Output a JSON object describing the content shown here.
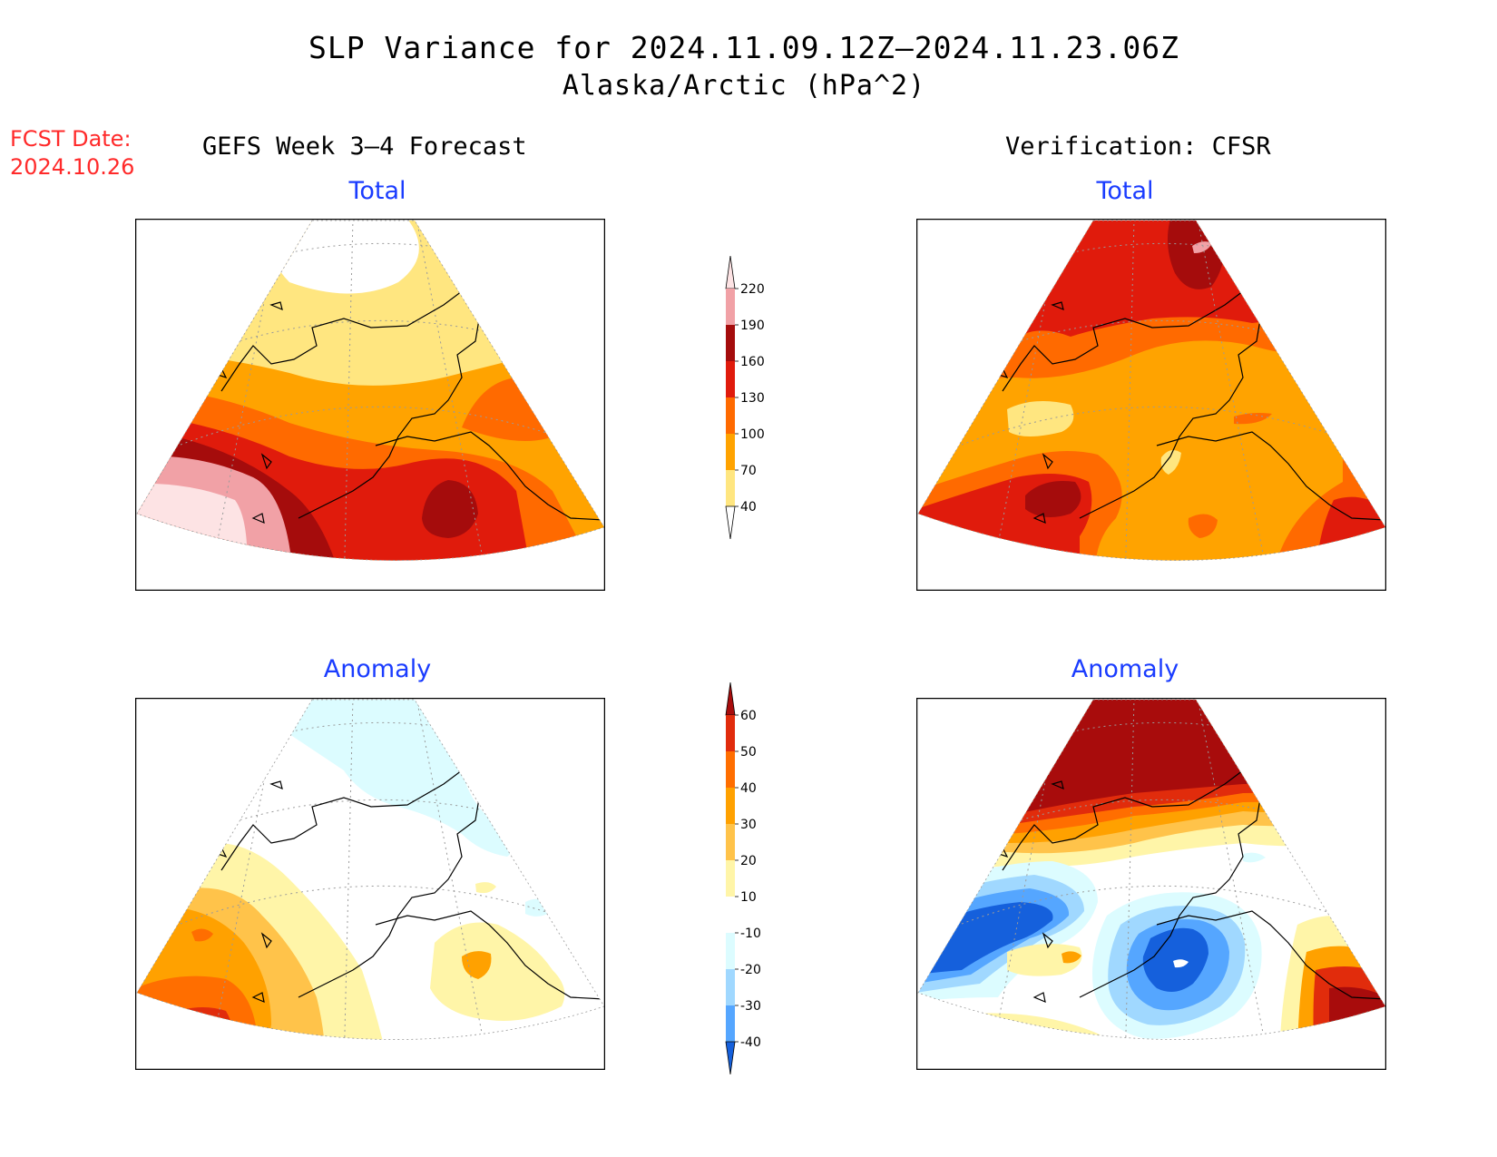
{
  "title": {
    "line1": "SLP Variance for 2024.11.09.12Z–2024.11.23.06Z",
    "line2": "Alaska/Arctic (hPa^2)"
  },
  "forecast_date": {
    "label": "FCST Date:",
    "value": "2024.10.26"
  },
  "columns": {
    "left": "GEFS Week 3–4 Forecast",
    "right": "Verification: CFSR"
  },
  "panels": {
    "total": "Total",
    "anomaly": "Anomaly"
  },
  "colors": {
    "t40": "#ffe680",
    "t70": "#ffa300",
    "t100": "#ff6a00",
    "t130": "#e01b0c",
    "t160": "#a50c0c",
    "t190": "#f1a1a6",
    "t220": "#fde3e4",
    "a10": "#fff5a8",
    "a20": "#ffc34a",
    "a30": "#ffa100",
    "a40": "#ff6e00",
    "a50": "#e12c0c",
    "a60": "#a80c0c",
    "n10": "#dcfcff",
    "n20": "#a0d8ff",
    "n30": "#55a6ff",
    "n40": "#1560dc",
    "land": "#000000",
    "grid": "#9a9a9a"
  },
  "legend_total": {
    "ticks": [
      "220",
      "190",
      "160",
      "130",
      "100",
      "70",
      "40"
    ],
    "colors": [
      "#fde3e4",
      "#f1a1a6",
      "#a50c0c",
      "#e01b0c",
      "#ff6a00",
      "#ffa300",
      "#ffe680",
      "#ffffff"
    ]
  },
  "legend_anomaly": {
    "ticks": [
      "60",
      "50",
      "40",
      "30",
      "20",
      "10",
      "-10",
      "-20",
      "-30",
      "-40"
    ],
    "colors": [
      "#a80c0c",
      "#e12c0c",
      "#ff6e00",
      "#ffa100",
      "#ffc34a",
      "#fff5a8",
      "#ffffff",
      "#dcfcff",
      "#a0d8ff",
      "#55a6ff",
      "#1560dc"
    ]
  }
}
